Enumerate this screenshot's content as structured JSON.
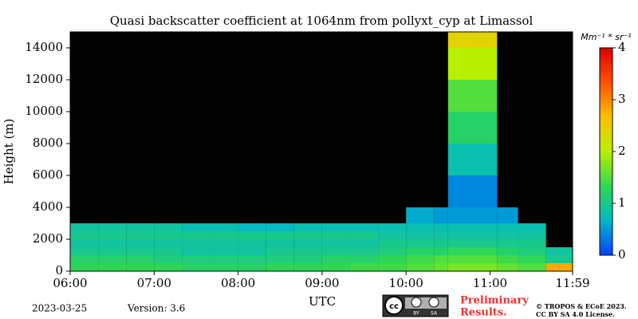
{
  "chart_data": {
    "type": "heatmap",
    "title": "Quasi backscatter coefficient at 1064nm from pollyxt_cyp at Limassol",
    "ylabel": "Height (m)",
    "xlabel": "UTC",
    "x_edges": [
      "06:00",
      "06:20",
      "06:40",
      "07:00",
      "07:20",
      "07:40",
      "08:00",
      "08:20",
      "08:40",
      "09:00",
      "09:20",
      "09:40",
      "10:00",
      "10:20",
      "10:30",
      "11:05",
      "11:20",
      "11:40",
      "11:59"
    ],
    "y_edges": [
      0,
      500,
      1000,
      1500,
      2000,
      2500,
      3000,
      4000,
      6000,
      8000,
      10000,
      12000,
      14000,
      15000
    ],
    "z": [
      [
        1.3,
        1.3,
        1.3,
        1.3,
        1.2,
        1.2,
        1.2,
        1.3,
        1.3,
        1.3,
        1.4,
        1.4,
        1.5,
        1.6,
        1.7,
        1.6,
        1.5,
        2.8
      ],
      [
        1.2,
        1.2,
        1.2,
        1.1,
        1.1,
        1.1,
        1.1,
        1.1,
        1.1,
        1.2,
        1.2,
        1.3,
        1.4,
        1.5,
        1.5,
        1.4,
        1.3,
        1.0
      ],
      [
        1.0,
        1.0,
        1.0,
        1.0,
        0.9,
        0.9,
        0.9,
        1.0,
        1.0,
        1.0,
        1.0,
        1.1,
        1.2,
        1.2,
        1.3,
        1.2,
        1.1,
        0.9
      ],
      [
        0.9,
        0.9,
        0.9,
        0.9,
        0.9,
        0.9,
        0.9,
        0.9,
        0.9,
        0.9,
        0.9,
        1.0,
        1.0,
        1.0,
        1.0,
        1.0,
        1.0,
        null
      ],
      [
        1.0,
        1.0,
        1.0,
        1.0,
        1.0,
        1.0,
        1.0,
        1.0,
        1.0,
        1.0,
        1.0,
        0.9,
        0.9,
        0.9,
        0.9,
        0.9,
        0.9,
        null
      ],
      [
        0.9,
        0.9,
        0.9,
        0.9,
        0.8,
        0.8,
        0.7,
        0.7,
        0.8,
        0.8,
        0.8,
        0.8,
        0.8,
        0.8,
        0.8,
        0.8,
        0.8,
        null
      ],
      [
        null,
        null,
        null,
        null,
        null,
        null,
        null,
        null,
        null,
        null,
        null,
        null,
        0.6,
        0.5,
        0.5,
        0.5,
        null,
        null
      ],
      [
        null,
        null,
        null,
        null,
        null,
        null,
        null,
        null,
        null,
        null,
        null,
        null,
        null,
        null,
        0.4,
        null,
        null,
        null
      ],
      [
        null,
        null,
        null,
        null,
        null,
        null,
        null,
        null,
        null,
        null,
        null,
        null,
        null,
        null,
        0.8,
        null,
        null,
        null
      ],
      [
        null,
        null,
        null,
        null,
        null,
        null,
        null,
        null,
        null,
        null,
        null,
        null,
        null,
        null,
        1.2,
        null,
        null,
        null
      ],
      [
        null,
        null,
        null,
        null,
        null,
        null,
        null,
        null,
        null,
        null,
        null,
        null,
        null,
        null,
        1.5,
        null,
        null,
        null
      ],
      [
        null,
        null,
        null,
        null,
        null,
        null,
        null,
        null,
        null,
        null,
        null,
        null,
        null,
        null,
        2.0,
        null,
        null,
        null
      ],
      [
        null,
        null,
        null,
        null,
        null,
        null,
        null,
        null,
        null,
        null,
        null,
        null,
        null,
        null,
        2.4,
        null,
        null,
        null
      ]
    ],
    "xlim": [
      "06:00",
      "11:59"
    ],
    "xticks": [
      "06:00",
      "07:00",
      "08:00",
      "09:00",
      "10:00",
      "11:00",
      "11:59"
    ],
    "ylim": [
      0,
      15000
    ],
    "yticks": [
      0,
      2000,
      4000,
      6000,
      8000,
      10000,
      12000,
      14000
    ],
    "background": "#000000",
    "colormap": [
      "#0040ff",
      "#00b8c8",
      "#30d850",
      "#b8f000",
      "#ffc000",
      "#ff5000",
      "#e00000"
    ],
    "clim": [
      0,
      4
    ],
    "cticks": [
      0,
      1,
      2,
      3,
      4
    ],
    "clabel": "Mm⁻¹ * sr⁻¹"
  },
  "footer": {
    "date": "2023-03-25",
    "version": "Version: 3.6",
    "license_badge": [
      "cc",
      "BY",
      "SA"
    ],
    "preliminary": [
      "Preliminary",
      "Results."
    ],
    "copyright": [
      "© TROPOS & ECoE 2023.",
      "CC BY SA 4.0 License."
    ]
  }
}
